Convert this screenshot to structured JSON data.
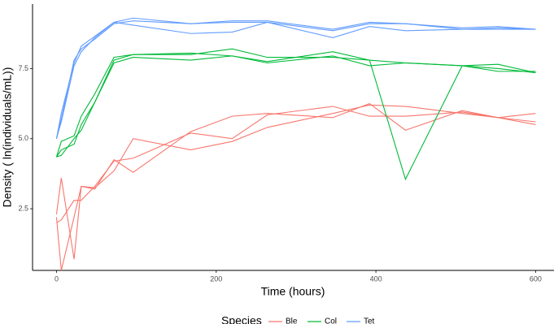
{
  "chart_data": {
    "type": "line",
    "x_label": "Time (hours)",
    "y_label": "Density ( ln(individuals/mL))",
    "legend_title": "Species",
    "legend_position": "bottom",
    "x": [
      0,
      6,
      22,
      31,
      48,
      72,
      96,
      168,
      220,
      264,
      346,
      392,
      437,
      508,
      553,
      600
    ],
    "xlim": [
      -30,
      623
    ],
    "ylim": [
      0.3,
      9.8
    ],
    "xticks": [
      0,
      200,
      400,
      600
    ],
    "yticks": [
      {
        "value": 2.5,
        "label": "2.5"
      },
      {
        "value": 5.0,
        "label": "5.0"
      },
      {
        "value": 7.5,
        "label": "7.5"
      }
    ],
    "series": [
      {
        "name": "Ble",
        "color": "#F8766D",
        "replicates": [
          {
            "values": [
              2.2,
              0.3,
              2.2,
              3.3,
              3.25,
              3.85,
              5.0,
              4.6,
              4.9,
              5.4,
              5.9,
              6.2,
              6.15,
              5.9,
              5.75,
              5.9
            ]
          },
          {
            "values": [
              2.3,
              3.6,
              0.7,
              3.3,
              3.2,
              4.25,
              3.8,
              5.25,
              5.8,
              5.9,
              5.75,
              6.25,
              5.3,
              6.0,
              5.75,
              5.5
            ]
          },
          {
            "values": [
              2.0,
              2.1,
              2.8,
              2.8,
              3.3,
              4.2,
              4.3,
              5.2,
              5.0,
              5.85,
              6.15,
              5.8,
              5.8,
              5.95,
              5.75,
              5.6
            ]
          }
        ]
      },
      {
        "name": "Col",
        "color": "#00BA38",
        "replicates": [
          {
            "values": [
              4.35,
              4.9,
              5.1,
              5.8,
              6.6,
              7.9,
              8.0,
              8.0,
              8.2,
              7.9,
              7.9,
              7.8,
              7.7,
              7.6,
              7.65,
              7.35
            ]
          },
          {
            "values": [
              4.35,
              4.6,
              4.8,
              5.5,
              6.3,
              7.7,
              7.9,
              7.8,
              7.95,
              7.7,
              7.95,
              7.6,
              7.7,
              7.6,
              7.4,
              7.4
            ]
          },
          {
            "values": [
              4.35,
              4.4,
              5.0,
              5.3,
              6.3,
              7.8,
              8.0,
              8.05,
              7.95,
              7.75,
              8.1,
              7.8,
              3.55,
              7.6,
              7.5,
              7.35
            ]
          }
        ]
      },
      {
        "name": "Tet",
        "color": "#619CFF",
        "replicates": [
          {
            "values": [
              5.0,
              5.9,
              7.7,
              8.3,
              8.65,
              9.15,
              9.3,
              9.1,
              9.2,
              9.2,
              8.9,
              9.15,
              9.1,
              8.95,
              9.0,
              8.9
            ]
          },
          {
            "values": [
              5.0,
              5.6,
              7.6,
              8.1,
              8.6,
              9.15,
              9.05,
              8.75,
              8.8,
              9.15,
              8.6,
              9.0,
              8.85,
              8.9,
              8.95,
              8.9
            ]
          },
          {
            "values": [
              5.0,
              5.7,
              7.8,
              8.2,
              8.55,
              9.1,
              9.2,
              9.1,
              9.15,
              9.15,
              8.85,
              9.1,
              9.1,
              8.9,
              8.9,
              8.9
            ]
          }
        ]
      }
    ]
  }
}
